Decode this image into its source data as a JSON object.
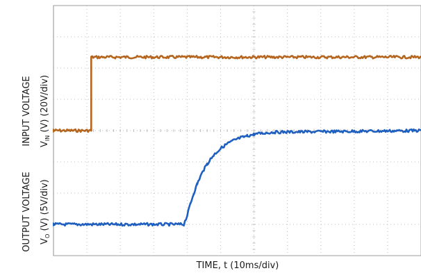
{
  "chart_data": {
    "type": "line",
    "xlabel": "TIME, t (10ms/div)",
    "ylabels": [
      {
        "line1": "INPUT  VOLTAGE",
        "line2_pre": "V",
        "line2_sub": "IN",
        "line2_post": " (V) (20V/div)"
      },
      {
        "line1": "OUTPUT VOLTAGE",
        "line2_pre": "V",
        "line2_sub": "O",
        "line2_post": " (V) (5V/div)"
      }
    ],
    "grid": true,
    "x_divisions": 11,
    "y_divisions": 8,
    "xlim": [
      0,
      110
    ],
    "x_unit": "ms",
    "series": [
      {
        "color": "#b5651d",
        "baseline_div": 4.0,
        "x": [
          0,
          11.3,
          11.3,
          110
        ],
        "y_div": [
          4.0,
          4.0,
          6.35,
          6.35
        ]
      },
      {
        "color": "#1f5fbf",
        "baseline_div": 1.0,
        "x": [
          0,
          39.0,
          40,
          41,
          42,
          43,
          44,
          45,
          46,
          47,
          48,
          50,
          52,
          54,
          56,
          58,
          60,
          62,
          64,
          66,
          110
        ],
        "y_div": [
          1.0,
          1.0,
          1.28,
          1.67,
          2.0,
          2.29,
          2.54,
          2.75,
          2.93,
          3.09,
          3.22,
          3.43,
          3.58,
          3.69,
          3.77,
          3.83,
          3.88,
          3.91,
          3.93,
          3.95,
          4.0
        ]
      }
    ],
    "colors": {
      "input": "#b5651d",
      "output": "#1f5fbf",
      "grid": "#bdbdbd",
      "frame": "#9e9e9e"
    }
  }
}
